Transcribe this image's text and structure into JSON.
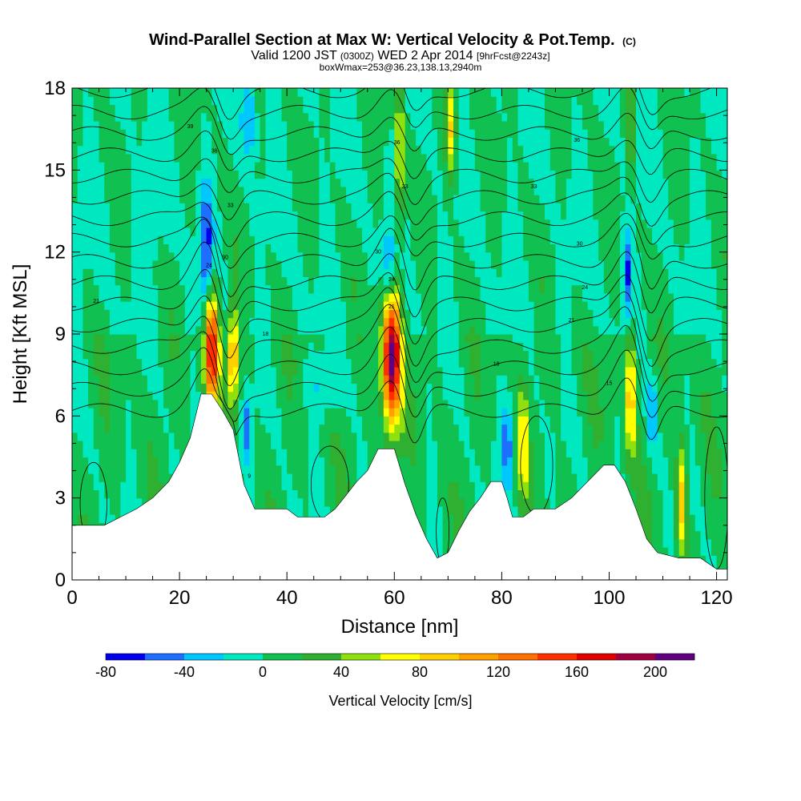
{
  "chart_data": {
    "type": "heatmap",
    "title": "Wind-Parallel Section at Max W: Vertical Velocity & Pot.Temp.",
    "title_suffix": "(C)",
    "subtitle_line1_a": "Valid 1200 JST",
    "subtitle_line1_b": "(0300Z)",
    "subtitle_line1_c": "WED 2 Apr 2014",
    "subtitle_line1_d": "[9hrFcst@2243z]",
    "subtitle_line2": "boxWmax=253@36.23,138.13,2940m",
    "xlabel": "Distance [nm]",
    "ylabel": "Height [Kft MSL]",
    "xlim": [
      0,
      122
    ],
    "ylim": [
      0,
      18
    ],
    "x_ticks": [
      0,
      20,
      40,
      60,
      80,
      100,
      120
    ],
    "y_ticks": [
      0,
      3,
      6,
      9,
      12,
      15,
      18
    ],
    "colorbar": {
      "label": "Vertical Velocity [cm/s]",
      "ticks": [
        -80,
        -40,
        0,
        40,
        80,
        120,
        160,
        200
      ],
      "bins": [
        {
          "from": -80,
          "to": -60,
          "color": "#0000ee"
        },
        {
          "from": -60,
          "to": -40,
          "color": "#1e6fff"
        },
        {
          "from": -40,
          "to": -20,
          "color": "#00c8ff"
        },
        {
          "from": -20,
          "to": 0,
          "color": "#00e8c0"
        },
        {
          "from": 0,
          "to": 20,
          "color": "#10c050"
        },
        {
          "from": 20,
          "to": 40,
          "color": "#30b030"
        },
        {
          "from": 40,
          "to": 60,
          "color": "#90e010"
        },
        {
          "from": 60,
          "to": 80,
          "color": "#ffff00"
        },
        {
          "from": 80,
          "to": 100,
          "color": "#ffd000"
        },
        {
          "from": 100,
          "to": 120,
          "color": "#ffa000"
        },
        {
          "from": 120,
          "to": 140,
          "color": "#ff7000"
        },
        {
          "from": 140,
          "to": 160,
          "color": "#ff3000"
        },
        {
          "from": 160,
          "to": 180,
          "color": "#e00000"
        },
        {
          "from": 180,
          "to": 200,
          "color": "#a00040"
        },
        {
          "from": 200,
          "to": 220,
          "color": "#600080"
        }
      ]
    },
    "terrain_kft": [
      {
        "x": 0,
        "h": 2.0
      },
      {
        "x": 6,
        "h": 2.0
      },
      {
        "x": 9,
        "h": 2.3
      },
      {
        "x": 12,
        "h": 2.6
      },
      {
        "x": 15,
        "h": 3.0
      },
      {
        "x": 18,
        "h": 3.6
      },
      {
        "x": 20,
        "h": 4.3
      },
      {
        "x": 22,
        "h": 5.2
      },
      {
        "x": 23,
        "h": 6.0
      },
      {
        "x": 24,
        "h": 6.8
      },
      {
        "x": 26,
        "h": 6.8
      },
      {
        "x": 28,
        "h": 6.2
      },
      {
        "x": 30,
        "h": 5.5
      },
      {
        "x": 31,
        "h": 4.5
      },
      {
        "x": 32,
        "h": 3.5
      },
      {
        "x": 34,
        "h": 2.6
      },
      {
        "x": 40,
        "h": 2.6
      },
      {
        "x": 42,
        "h": 2.3
      },
      {
        "x": 47,
        "h": 2.3
      },
      {
        "x": 49,
        "h": 2.6
      },
      {
        "x": 51,
        "h": 3.1
      },
      {
        "x": 53,
        "h": 3.6
      },
      {
        "x": 55,
        "h": 4.0
      },
      {
        "x": 57,
        "h": 4.8
      },
      {
        "x": 60,
        "h": 4.8
      },
      {
        "x": 62,
        "h": 3.5
      },
      {
        "x": 64,
        "h": 2.4
      },
      {
        "x": 66,
        "h": 1.5
      },
      {
        "x": 68,
        "h": 0.8
      },
      {
        "x": 70,
        "h": 1.0
      },
      {
        "x": 72,
        "h": 1.8
      },
      {
        "x": 74,
        "h": 2.5
      },
      {
        "x": 76,
        "h": 3.0
      },
      {
        "x": 78,
        "h": 3.6
      },
      {
        "x": 80,
        "h": 3.6
      },
      {
        "x": 81,
        "h": 3.0
      },
      {
        "x": 82,
        "h": 2.3
      },
      {
        "x": 84,
        "h": 2.3
      },
      {
        "x": 86,
        "h": 2.6
      },
      {
        "x": 90,
        "h": 2.6
      },
      {
        "x": 93,
        "h": 3.0
      },
      {
        "x": 96,
        "h": 3.6
      },
      {
        "x": 99,
        "h": 4.2
      },
      {
        "x": 101,
        "h": 4.2
      },
      {
        "x": 103,
        "h": 3.6
      },
      {
        "x": 105,
        "h": 2.6
      },
      {
        "x": 107,
        "h": 1.5
      },
      {
        "x": 109,
        "h": 1.0
      },
      {
        "x": 113,
        "h": 0.8
      },
      {
        "x": 117,
        "h": 0.8
      },
      {
        "x": 120,
        "h": 0.4
      },
      {
        "x": 122,
        "h": 0.4
      }
    ],
    "w_features": [
      {
        "x": 26,
        "z": 8.6,
        "rx": 1.4,
        "rz": 2.2,
        "w": 170
      },
      {
        "x": 30,
        "z": 8.2,
        "rx": 1.0,
        "rz": 1.8,
        "w": 110
      },
      {
        "x": 25,
        "z": 12.0,
        "rx": 1.2,
        "rz": 2.4,
        "w": -65
      },
      {
        "x": 32.5,
        "z": 5.5,
        "rx": 0.8,
        "rz": 1.2,
        "w": -55
      },
      {
        "x": 33,
        "z": 17.0,
        "rx": 1.3,
        "rz": 1.5,
        "w": -45
      },
      {
        "x": 59.5,
        "z": 8.2,
        "rx": 1.8,
        "rz": 2.6,
        "w": 200
      },
      {
        "x": 61,
        "z": 15.5,
        "rx": 0.8,
        "rz": 2.8,
        "w": 75
      },
      {
        "x": 59,
        "z": 11.3,
        "rx": 1.3,
        "rz": 1.4,
        "w": -60
      },
      {
        "x": 70.5,
        "z": 16.5,
        "rx": 1.0,
        "rz": 1.8,
        "w": 85
      },
      {
        "x": 81,
        "z": 5.0,
        "rx": 0.7,
        "rz": 1.6,
        "w": -75
      },
      {
        "x": 84,
        "z": 5.0,
        "rx": 0.8,
        "rz": 2.2,
        "w": 70
      },
      {
        "x": 104,
        "z": 6.8,
        "rx": 1.1,
        "rz": 2.2,
        "w": 95
      },
      {
        "x": 103.5,
        "z": 11.2,
        "rx": 0.8,
        "rz": 1.5,
        "w": -60
      },
      {
        "x": 108,
        "z": 6.0,
        "rx": 0.8,
        "rz": 1.3,
        "w": -55
      },
      {
        "x": 113.5,
        "z": 3.0,
        "rx": 1.0,
        "rz": 2.0,
        "w": 90
      },
      {
        "x": 104,
        "z": 16.5,
        "rx": 0.6,
        "rz": 1.6,
        "w": 65
      },
      {
        "x": 47,
        "z": 7.0,
        "rx": 4.0,
        "rz": 1.0,
        "w": -25
      },
      {
        "x": 15,
        "z": 13.0,
        "rx": 4.0,
        "rz": 2.0,
        "w": -10
      }
    ],
    "theta_contour_labels": [
      {
        "x": 22,
        "z": 16.6,
        "label": "39"
      },
      {
        "x": 26.5,
        "z": 15.7,
        "label": "36"
      },
      {
        "x": 29.5,
        "z": 13.7,
        "label": "33"
      },
      {
        "x": 28.5,
        "z": 11.8,
        "label": "30"
      },
      {
        "x": 25.5,
        "z": 11.5,
        "label": "24"
      },
      {
        "x": 4.5,
        "z": 10.2,
        "label": "21"
      },
      {
        "x": 36,
        "z": 9.0,
        "label": "18"
      },
      {
        "x": 60.5,
        "z": 16.0,
        "label": "36"
      },
      {
        "x": 62,
        "z": 14.4,
        "label": "33"
      },
      {
        "x": 57,
        "z": 12.0,
        "label": "30"
      },
      {
        "x": 59.5,
        "z": 11.0,
        "label": "24"
      },
      {
        "x": 59.5,
        "z": 10.0,
        "label": "21"
      },
      {
        "x": 86,
        "z": 14.4,
        "label": "33"
      },
      {
        "x": 94,
        "z": 16.1,
        "label": "36"
      },
      {
        "x": 94.5,
        "z": 12.3,
        "label": "30"
      },
      {
        "x": 95.5,
        "z": 10.7,
        "label": "24"
      },
      {
        "x": 93,
        "z": 9.5,
        "label": "21"
      },
      {
        "x": 79,
        "z": 7.9,
        "label": "18"
      },
      {
        "x": 100,
        "z": 7.2,
        "label": "15"
      },
      {
        "x": 33,
        "z": 3.8,
        "label": "9"
      }
    ]
  }
}
